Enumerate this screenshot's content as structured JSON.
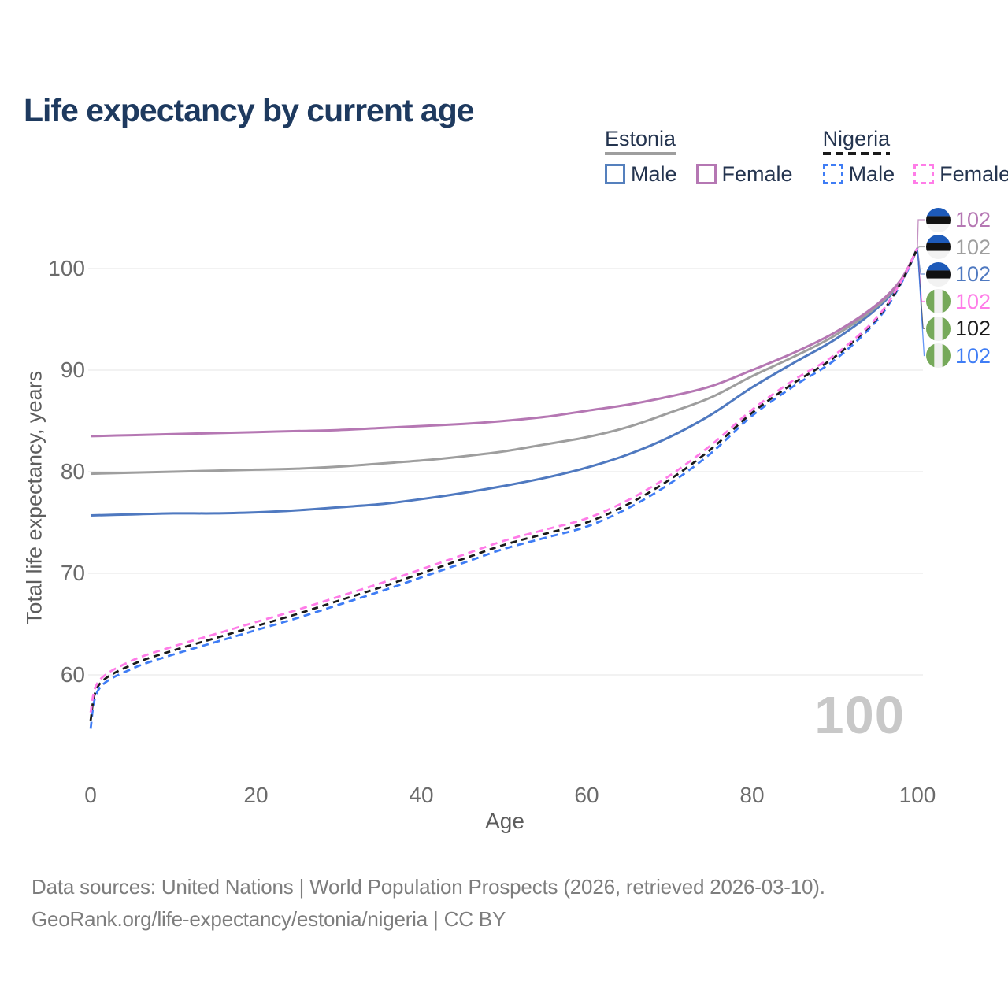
{
  "title": "Life expectancy by current age",
  "watermark": {
    "text": "100"
  },
  "footer": {
    "line1": "Data sources: United Nations | World Population Prospects (2026, retrieved 2026-03-10).",
    "line2": "GeoRank.org/life-expectancy/estonia/nigeria | CC BY"
  },
  "legend": {
    "groups": [
      {
        "name": "Estonia",
        "underline_style": "solid",
        "underline_color": "#9e9e9e",
        "items": [
          {
            "label": "Male",
            "color": "#5580bd",
            "box_style": "solid"
          },
          {
            "label": "Female",
            "color": "#b577b3",
            "box_style": "solid"
          }
        ]
      },
      {
        "name": "Nigeria",
        "underline_style": "dashed",
        "underline_color": "#1a1a1a",
        "items": [
          {
            "label": "Male",
            "color": "#3f7df5",
            "box_style": "dashed"
          },
          {
            "label": "Female",
            "color": "#ff7ce8",
            "box_style": "dashed"
          }
        ]
      }
    ]
  },
  "flag_colors": {
    "estonia": [
      "#1d5ab9",
      "#111111",
      "#f2f2f2"
    ],
    "nigeria": [
      "#76a95a",
      "#f0f0f0"
    ]
  },
  "chart_data": {
    "type": "line",
    "title": "Life expectancy by current age",
    "xlabel": "Age",
    "ylabel": "Total life expectancy, years",
    "xlim": [
      0,
      100
    ],
    "ylim": [
      54,
      103
    ],
    "x_ticks": [
      0,
      20,
      40,
      60,
      80,
      100
    ],
    "y_ticks": [
      60,
      70,
      80,
      90,
      100
    ],
    "grid": "horizontal",
    "legend_position": "top-right",
    "series": [
      {
        "id": "estonia-male",
        "name": "Estonia Male",
        "color": "#4f79c0",
        "line_style": "solid",
        "points": [
          [
            0,
            75.7
          ],
          [
            5,
            75.8
          ],
          [
            10,
            75.9
          ],
          [
            15,
            75.9
          ],
          [
            20,
            76.0
          ],
          [
            25,
            76.2
          ],
          [
            30,
            76.5
          ],
          [
            35,
            76.8
          ],
          [
            40,
            77.3
          ],
          [
            45,
            77.9
          ],
          [
            50,
            78.6
          ],
          [
            55,
            79.4
          ],
          [
            60,
            80.4
          ],
          [
            65,
            81.7
          ],
          [
            70,
            83.4
          ],
          [
            75,
            85.6
          ],
          [
            80,
            88.3
          ],
          [
            85,
            90.7
          ],
          [
            90,
            93.0
          ],
          [
            95,
            96.0
          ],
          [
            98,
            98.7
          ],
          [
            100,
            102
          ]
        ]
      },
      {
        "id": "estonia-total",
        "name": "Estonia",
        "color": "#9e9e9e",
        "line_style": "solid",
        "points": [
          [
            0,
            79.8
          ],
          [
            5,
            79.9
          ],
          [
            10,
            80.0
          ],
          [
            15,
            80.1
          ],
          [
            20,
            80.2
          ],
          [
            25,
            80.3
          ],
          [
            30,
            80.5
          ],
          [
            35,
            80.8
          ],
          [
            40,
            81.1
          ],
          [
            45,
            81.5
          ],
          [
            50,
            82.0
          ],
          [
            55,
            82.7
          ],
          [
            60,
            83.4
          ],
          [
            65,
            84.4
          ],
          [
            70,
            85.8
          ],
          [
            75,
            87.3
          ],
          [
            80,
            89.4
          ],
          [
            85,
            91.3
          ],
          [
            90,
            93.4
          ],
          [
            95,
            96.2
          ],
          [
            98,
            98.8
          ],
          [
            100,
            102
          ]
        ]
      },
      {
        "id": "estonia-female",
        "name": "Estonia Female",
        "color": "#b577b3",
        "line_style": "solid",
        "points": [
          [
            0,
            83.5
          ],
          [
            5,
            83.6
          ],
          [
            10,
            83.7
          ],
          [
            15,
            83.8
          ],
          [
            20,
            83.9
          ],
          [
            25,
            84.0
          ],
          [
            30,
            84.1
          ],
          [
            35,
            84.3
          ],
          [
            40,
            84.5
          ],
          [
            45,
            84.7
          ],
          [
            50,
            85.0
          ],
          [
            55,
            85.4
          ],
          [
            60,
            86.0
          ],
          [
            65,
            86.6
          ],
          [
            70,
            87.4
          ],
          [
            75,
            88.4
          ],
          [
            80,
            90.0
          ],
          [
            85,
            91.7
          ],
          [
            90,
            93.7
          ],
          [
            95,
            96.4
          ],
          [
            98,
            98.9
          ],
          [
            100,
            102
          ]
        ]
      },
      {
        "id": "nigeria-male",
        "name": "Nigeria Male",
        "color": "#3f7df5",
        "line_style": "dashed",
        "points": [
          [
            0,
            54.7
          ],
          [
            1,
            58.6
          ],
          [
            5,
            60.6
          ],
          [
            10,
            62.0
          ],
          [
            15,
            63.2
          ],
          [
            20,
            64.4
          ],
          [
            25,
            65.6
          ],
          [
            30,
            66.9
          ],
          [
            35,
            68.2
          ],
          [
            40,
            69.6
          ],
          [
            45,
            71.0
          ],
          [
            50,
            72.4
          ],
          [
            55,
            73.5
          ],
          [
            60,
            74.6
          ],
          [
            65,
            76.4
          ],
          [
            70,
            78.8
          ],
          [
            75,
            81.8
          ],
          [
            80,
            85.5
          ],
          [
            85,
            88.4
          ],
          [
            90,
            91.0
          ],
          [
            95,
            94.8
          ],
          [
            98,
            98.5
          ],
          [
            100,
            102
          ]
        ]
      },
      {
        "id": "nigeria-total",
        "name": "Nigeria",
        "color": "#1a1a1a",
        "line_style": "dashed",
        "points": [
          [
            0,
            55.5
          ],
          [
            1,
            59.0
          ],
          [
            5,
            61.0
          ],
          [
            10,
            62.4
          ],
          [
            15,
            63.6
          ],
          [
            20,
            64.8
          ],
          [
            25,
            66.0
          ],
          [
            30,
            67.3
          ],
          [
            35,
            68.6
          ],
          [
            40,
            70.0
          ],
          [
            45,
            71.4
          ],
          [
            50,
            72.8
          ],
          [
            55,
            73.9
          ],
          [
            60,
            75.0
          ],
          [
            65,
            76.8
          ],
          [
            70,
            79.2
          ],
          [
            75,
            82.2
          ],
          [
            80,
            85.8
          ],
          [
            85,
            88.7
          ],
          [
            90,
            91.3
          ],
          [
            95,
            95.0
          ],
          [
            98,
            98.6
          ],
          [
            100,
            102
          ]
        ]
      },
      {
        "id": "nigeria-female",
        "name": "Nigeria Female",
        "color": "#ff7ce8",
        "line_style": "dashed",
        "points": [
          [
            0,
            56.3
          ],
          [
            1,
            59.4
          ],
          [
            5,
            61.4
          ],
          [
            10,
            62.8
          ],
          [
            15,
            64.0
          ],
          [
            20,
            65.2
          ],
          [
            25,
            66.4
          ],
          [
            30,
            67.7
          ],
          [
            35,
            69.0
          ],
          [
            40,
            70.4
          ],
          [
            45,
            71.8
          ],
          [
            50,
            73.2
          ],
          [
            55,
            74.3
          ],
          [
            60,
            75.4
          ],
          [
            65,
            77.2
          ],
          [
            70,
            79.6
          ],
          [
            75,
            82.6
          ],
          [
            80,
            86.1
          ],
          [
            85,
            89.0
          ],
          [
            90,
            91.5
          ],
          [
            95,
            95.1
          ],
          [
            98,
            98.7
          ],
          [
            100,
            102
          ]
        ]
      }
    ],
    "end_labels": [
      {
        "series": "estonia-female",
        "flag": "estonia",
        "value": "102",
        "color": "#b577b3"
      },
      {
        "series": "estonia-total",
        "flag": "estonia",
        "value": "102",
        "color": "#9e9e9e"
      },
      {
        "series": "estonia-male",
        "flag": "estonia",
        "value": "102",
        "color": "#4f79c0"
      },
      {
        "series": "nigeria-female",
        "flag": "nigeria",
        "value": "102",
        "color": "#ff7ce8"
      },
      {
        "series": "nigeria-total",
        "flag": "nigeria",
        "value": "102",
        "color": "#1a1a1a"
      },
      {
        "series": "nigeria-male",
        "flag": "nigeria",
        "value": "102",
        "color": "#3f7df5"
      }
    ]
  }
}
